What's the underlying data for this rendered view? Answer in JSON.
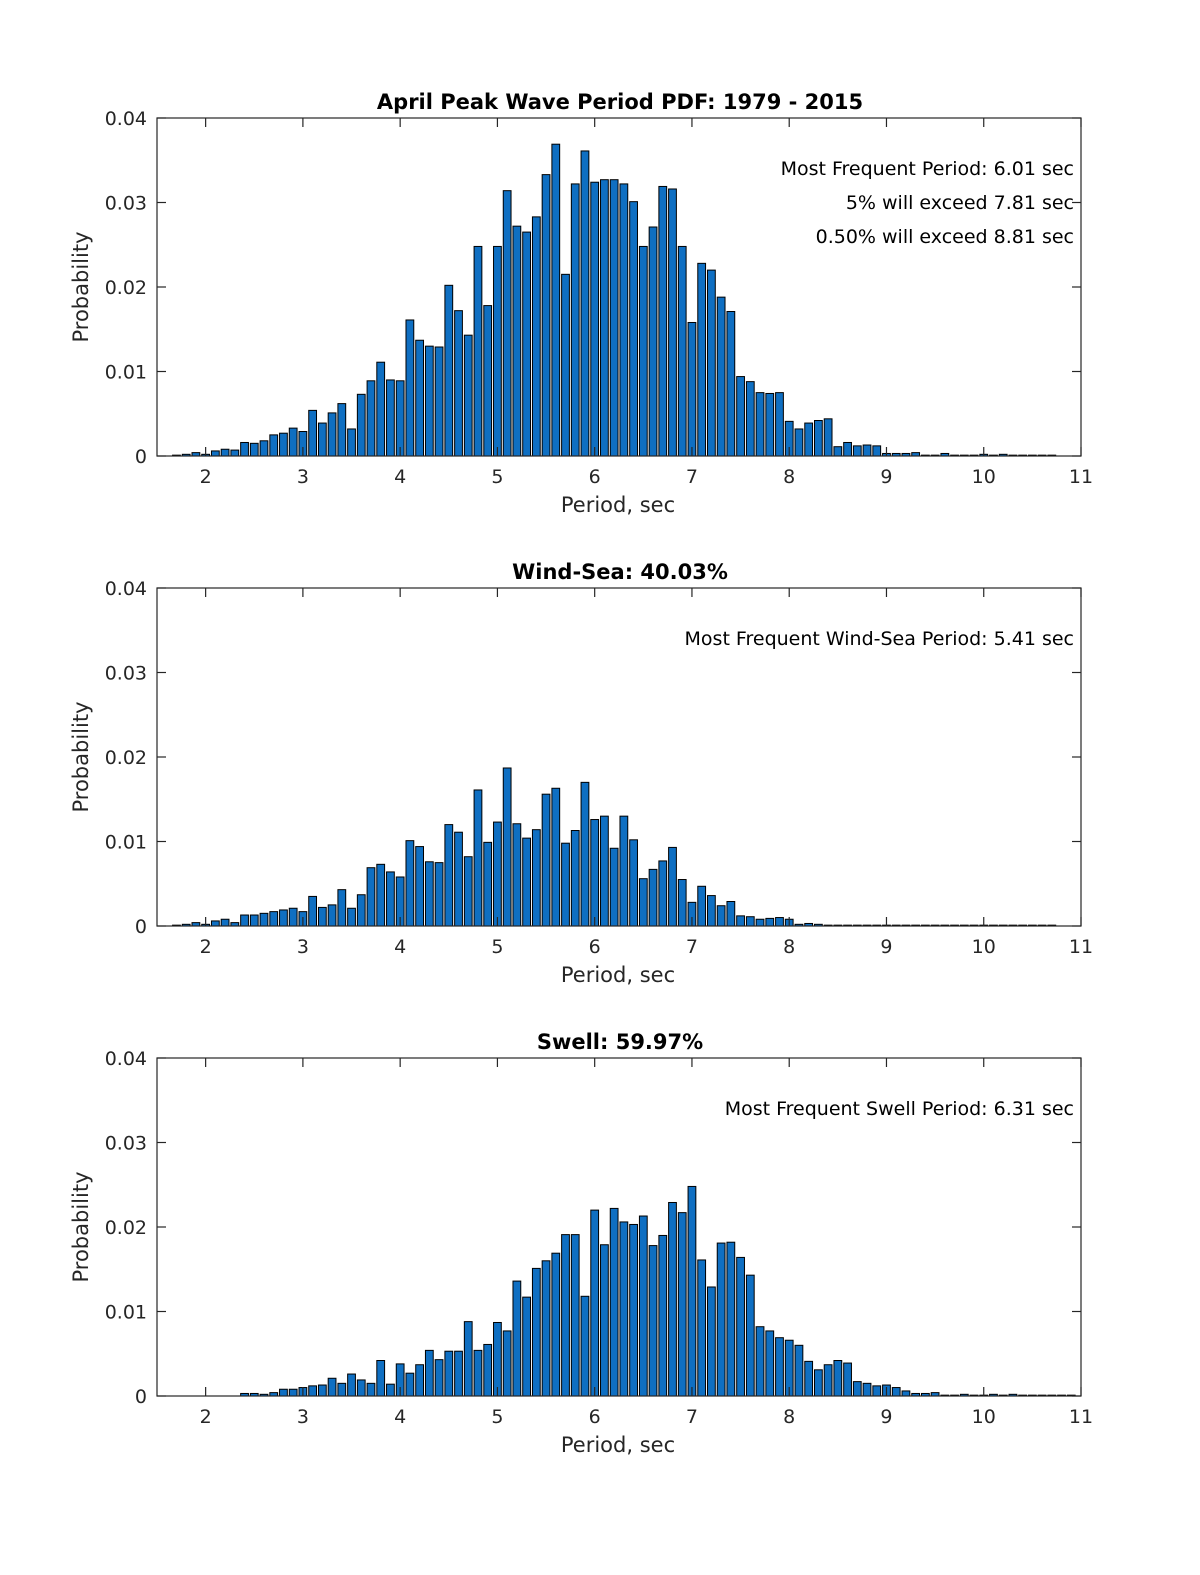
{
  "chart_data": [
    {
      "type": "bar",
      "title": "April Peak Wave Period PDF: 1979 - 2015",
      "xlabel": "Period, sec",
      "ylabel": "Probability",
      "xlim": [
        1.5,
        11
      ],
      "ylim": [
        0,
        0.04
      ],
      "xticks": [
        "2",
        "3",
        "4",
        "5",
        "6",
        "7",
        "8",
        "9",
        "10",
        "11"
      ],
      "yticks": [
        "0",
        "0.01",
        "0.02",
        "0.03",
        "0.04"
      ],
      "grid": false,
      "annotations": [
        "Most Frequent Period: 6.01 sec",
        "5% will exceed 7.81 sec",
        "0.50% will exceed 8.81 sec"
      ],
      "x_start": 1.7,
      "bin_width": 0.1,
      "values": [
        0.0001,
        0.0002,
        0.0004,
        0.0002,
        0.0006,
        0.0008,
        0.0007,
        0.0016,
        0.0015,
        0.0018,
        0.0025,
        0.0027,
        0.0033,
        0.0029,
        0.0054,
        0.0039,
        0.0051,
        0.0062,
        0.0032,
        0.0073,
        0.0089,
        0.0111,
        0.009,
        0.0089,
        0.0161,
        0.0137,
        0.013,
        0.0129,
        0.0202,
        0.0172,
        0.0143,
        0.0248,
        0.0178,
        0.0248,
        0.0314,
        0.0272,
        0.0265,
        0.0283,
        0.0333,
        0.0369,
        0.0215,
        0.0322,
        0.0361,
        0.0324,
        0.0327,
        0.0327,
        0.0322,
        0.0301,
        0.0248,
        0.0271,
        0.0319,
        0.0316,
        0.0248,
        0.0158,
        0.0228,
        0.022,
        0.0188,
        0.0171,
        0.0094,
        0.0088,
        0.0075,
        0.0074,
        0.0075,
        0.0041,
        0.0032,
        0.0039,
        0.0042,
        0.0044,
        0.0011,
        0.0016,
        0.0012,
        0.0013,
        0.0012,
        0.0003,
        0.0003,
        0.0003,
        0.0004,
        0.0001,
        0.0001,
        0.0003,
        0.0001,
        0.0001,
        0.0001,
        0.0002,
        0.0001,
        0.0002,
        0.0001,
        0.0001,
        0.0001,
        0.0001,
        0.0001
      ]
    },
    {
      "type": "bar",
      "title": "Wind-Sea: 40.03%",
      "xlabel": "Period, sec",
      "ylabel": "Probability",
      "xlim": [
        1.5,
        11
      ],
      "ylim": [
        0,
        0.04
      ],
      "xticks": [
        "2",
        "3",
        "4",
        "5",
        "6",
        "7",
        "8",
        "9",
        "10",
        "11"
      ],
      "yticks": [
        "0",
        "0.01",
        "0.02",
        "0.03",
        "0.04"
      ],
      "grid": false,
      "annotations": [
        "Most Frequent Wind-Sea Period: 5.41 sec"
      ],
      "x_start": 1.7,
      "bin_width": 0.1,
      "values": [
        0.0001,
        0.0002,
        0.0004,
        0.0002,
        0.0006,
        0.0008,
        0.0004,
        0.0013,
        0.0013,
        0.0015,
        0.0017,
        0.0019,
        0.0021,
        0.0017,
        0.0035,
        0.0022,
        0.0025,
        0.0043,
        0.0021,
        0.0037,
        0.0069,
        0.0073,
        0.0064,
        0.0058,
        0.0101,
        0.0094,
        0.0076,
        0.0075,
        0.012,
        0.0111,
        0.0082,
        0.0161,
        0.0099,
        0.0123,
        0.0187,
        0.0121,
        0.0104,
        0.0114,
        0.0156,
        0.0163,
        0.0098,
        0.0113,
        0.017,
        0.0126,
        0.013,
        0.0092,
        0.013,
        0.0102,
        0.0056,
        0.0067,
        0.0077,
        0.0093,
        0.0055,
        0.0028,
        0.0047,
        0.0036,
        0.0024,
        0.0029,
        0.0012,
        0.0011,
        0.0008,
        0.0009,
        0.001,
        0.0008,
        0.0002,
        0.0003,
        0.0002,
        0.0001,
        0.0001,
        0.0001,
        0.0001,
        0.0001,
        0.0001,
        0.0001,
        0.0001,
        0.0001,
        0.0001,
        0.0001,
        0.0001,
        0.0001,
        0.0001,
        0.0001,
        0.0001,
        0.0001,
        0.0001,
        0.0001,
        0.0001,
        0.0001,
        0.0001,
        0.0001,
        0.0001
      ]
    },
    {
      "type": "bar",
      "title": "Swell: 59.97%",
      "xlabel": "Period, sec",
      "ylabel": "Probability",
      "xlim": [
        1.5,
        11
      ],
      "ylim": [
        0,
        0.04
      ],
      "xticks": [
        "2",
        "3",
        "4",
        "5",
        "6",
        "7",
        "8",
        "9",
        "10",
        "11"
      ],
      "yticks": [
        "0",
        "0.01",
        "0.02",
        "0.03",
        "0.04"
      ],
      "grid": false,
      "annotations": [
        "Most Frequent Swell Period: 6.31 sec"
      ],
      "x_start": 2.4,
      "bin_width": 0.1,
      "values": [
        0.0003,
        0.0003,
        0.0002,
        0.0004,
        0.0008,
        0.0008,
        0.001,
        0.0012,
        0.0013,
        0.0021,
        0.0015,
        0.0026,
        0.0019,
        0.0015,
        0.0042,
        0.0014,
        0.0038,
        0.0027,
        0.0037,
        0.0054,
        0.0043,
        0.0053,
        0.0053,
        0.0088,
        0.0054,
        0.0061,
        0.0087,
        0.0077,
        0.0136,
        0.0117,
        0.0151,
        0.016,
        0.0169,
        0.0191,
        0.0191,
        0.0118,
        0.022,
        0.0179,
        0.0222,
        0.0206,
        0.0203,
        0.0213,
        0.0178,
        0.019,
        0.0229,
        0.0217,
        0.0248,
        0.0161,
        0.0129,
        0.0181,
        0.0182,
        0.0164,
        0.0143,
        0.0082,
        0.0077,
        0.0069,
        0.0066,
        0.006,
        0.0041,
        0.0031,
        0.0037,
        0.0042,
        0.0039,
        0.0017,
        0.0015,
        0.0012,
        0.0013,
        0.001,
        0.0006,
        0.0003,
        0.0003,
        0.0004,
        0.0001,
        0.0001,
        0.0002,
        0.0001,
        0.0001,
        0.0002,
        0.0001,
        0.0002,
        0.0001,
        0.0001,
        0.0001,
        0.0001,
        0.0001,
        0.0001
      ]
    }
  ]
}
